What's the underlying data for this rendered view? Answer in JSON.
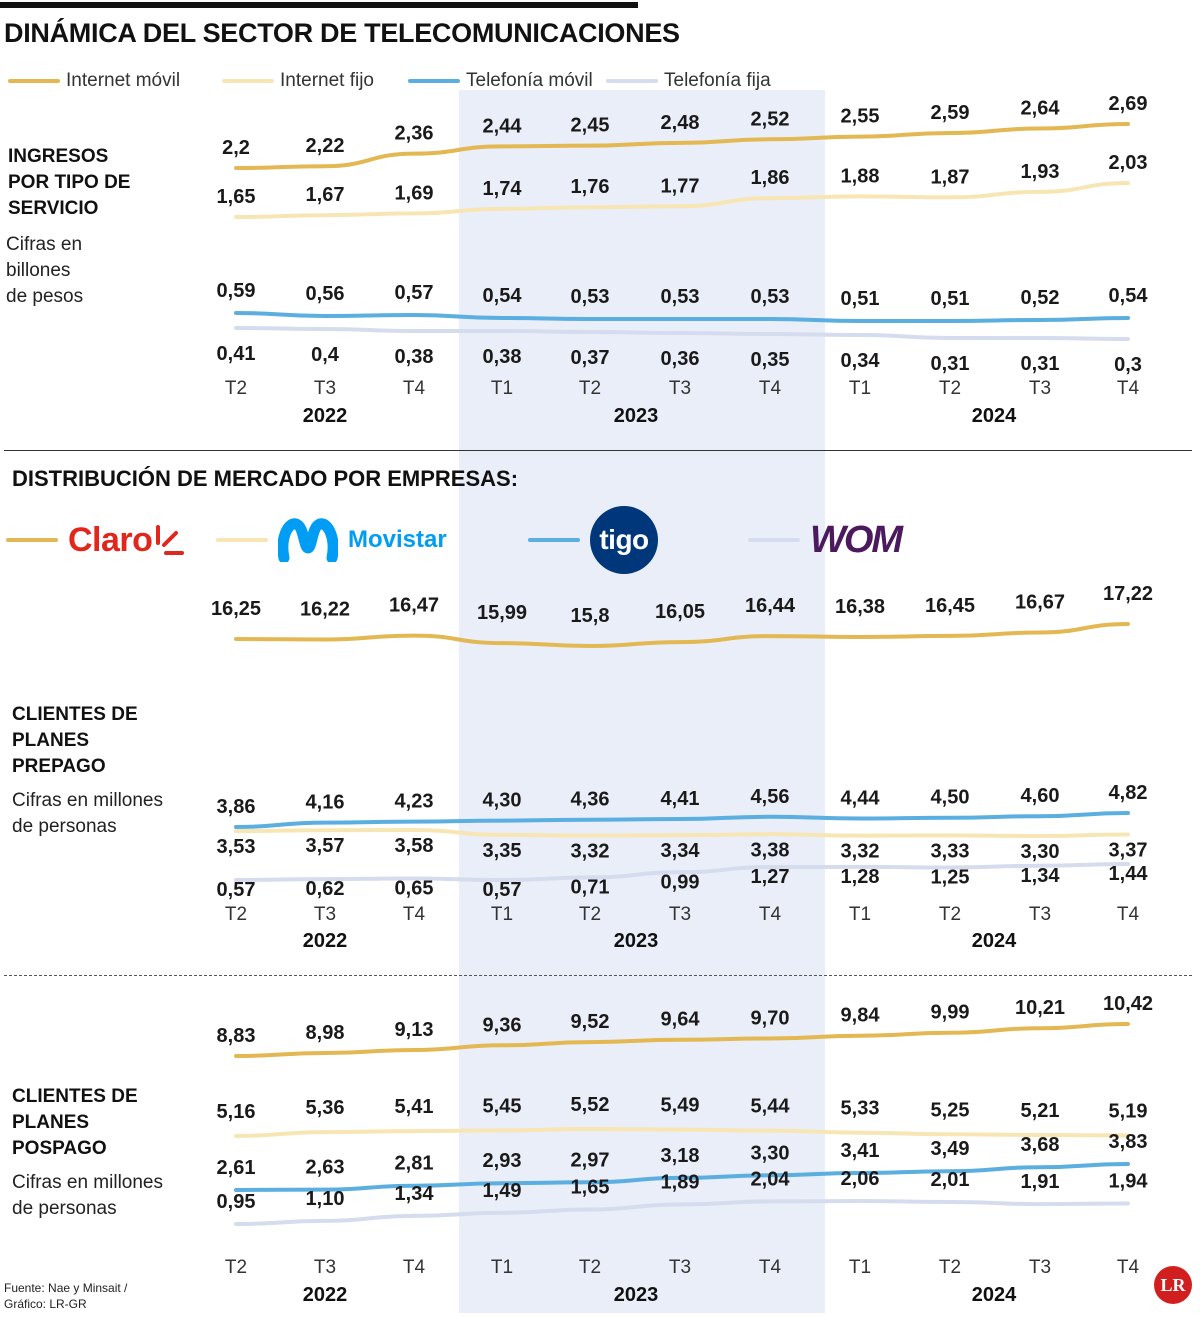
{
  "title": "DINÁMICA DEL SECTOR DE TELECOMUNICACIONES",
  "legend": [
    {
      "name": "Internet móvil",
      "color": "#e3b752"
    },
    {
      "name": "Internet fijo",
      "color": "#f7e6b3"
    },
    {
      "name": "Telefonía móvil",
      "color": "#5aaee0"
    },
    {
      "name": "Telefonía fija",
      "color": "#d5dcee"
    }
  ],
  "panel1": {
    "label_lines": [
      "INGRESOS",
      "POR TIPO DE",
      "SERVICIO"
    ],
    "note_lines": [
      "Cifras en",
      "billones",
      "de pesos"
    ]
  },
  "subtitle": "DISTRIBUCIÓN DE MERCADO POR EMPRESAS:",
  "brands": [
    {
      "name": "Claro",
      "color": "#e3b752",
      "icon": "claro-logo"
    },
    {
      "name": "Movistar",
      "color": "#f7e6b3",
      "icon": "movistar-logo"
    },
    {
      "name": "tigo",
      "color": "#5aaee0",
      "icon": "tigo-logo"
    },
    {
      "name": "WOM",
      "color": "#d5dcee",
      "icon": "wom-logo"
    }
  ],
  "panel2": {
    "label_lines": [
      "CLIENTES DE",
      "PLANES",
      "PREPAGO"
    ],
    "note_lines": [
      "Cifras en millones",
      "de personas"
    ]
  },
  "panel3": {
    "label_lines": [
      "CLIENTES DE",
      "PLANES",
      "POSPAGO"
    ],
    "note_lines": [
      "Cifras en millones",
      "de personas"
    ]
  },
  "footer": [
    "Fuente: Nae y Minsait /",
    "Gráfico: LR-GR"
  ],
  "lr_badge": "LR",
  "highlight_color": "#e9eef8",
  "chart_data": [
    {
      "type": "line",
      "title": "INGRESOS POR TIPO DE SERVICIO",
      "ylabel": "Cifras en billones de pesos",
      "categories": [
        "T2",
        "T3",
        "T4",
        "T1",
        "T2",
        "T3",
        "T4",
        "T1",
        "T2",
        "T3",
        "T4"
      ],
      "years": [
        {
          "label": "2022",
          "from": 0,
          "to": 2
        },
        {
          "label": "2023",
          "from": 3,
          "to": 6
        },
        {
          "label": "2024",
          "from": 7,
          "to": 10
        }
      ],
      "highlight": {
        "from": 3,
        "to": 6
      },
      "series": [
        {
          "name": "Internet móvil",
          "color": "#e3b752",
          "labels": [
            "2,2",
            "2,22",
            "2,36",
            "2,44",
            "2,45",
            "2,48",
            "2,52",
            "2,55",
            "2,59",
            "2,64",
            "2,69"
          ],
          "values": [
            2.2,
            2.22,
            2.36,
            2.44,
            2.45,
            2.48,
            2.52,
            2.55,
            2.59,
            2.64,
            2.69
          ]
        },
        {
          "name": "Internet fijo",
          "color": "#f7e6b3",
          "labels": [
            "1,65",
            "1,67",
            "1,69",
            "1,74",
            "1,76",
            "1,77",
            "1,86",
            "1,88",
            "1,87",
            "1,93",
            "2,03"
          ],
          "values": [
            1.65,
            1.67,
            1.69,
            1.74,
            1.76,
            1.77,
            1.86,
            1.88,
            1.87,
            1.93,
            2.03
          ]
        },
        {
          "name": "Telefonía móvil",
          "color": "#5aaee0",
          "labels": [
            "0,59",
            "0,56",
            "0,57",
            "0,54",
            "0,53",
            "0,53",
            "0,53",
            "0,51",
            "0,51",
            "0,52",
            "0,54"
          ],
          "values": [
            0.59,
            0.56,
            0.57,
            0.54,
            0.53,
            0.53,
            0.53,
            0.51,
            0.51,
            0.52,
            0.54
          ]
        },
        {
          "name": "Telefonía fija",
          "color": "#d5dcee",
          "labels": [
            "0,41",
            "0,4",
            "0,38",
            "0,38",
            "0,37",
            "0,36",
            "0,35",
            "0,34",
            "0,31",
            "0,31",
            "0,3"
          ],
          "values": [
            0.41,
            0.4,
            0.38,
            0.38,
            0.37,
            0.36,
            0.35,
            0.34,
            0.31,
            0.31,
            0.3
          ]
        }
      ]
    },
    {
      "type": "line",
      "title": "CLIENTES DE PLANES PREPAGO",
      "ylabel": "Cifras en millones de personas",
      "categories": [
        "T2",
        "T3",
        "T4",
        "T1",
        "T2",
        "T3",
        "T4",
        "T1",
        "T2",
        "T3",
        "T4"
      ],
      "years": [
        {
          "label": "2022",
          "from": 0,
          "to": 2
        },
        {
          "label": "2023",
          "from": 3,
          "to": 6
        },
        {
          "label": "2024",
          "from": 7,
          "to": 10
        }
      ],
      "highlight": {
        "from": 3,
        "to": 6
      },
      "series": [
        {
          "name": "Claro",
          "color": "#e3b752",
          "labels": [
            "16,25",
            "16,22",
            "16,47",
            "15,99",
            "15,8",
            "16,05",
            "16,44",
            "16,38",
            "16,45",
            "16,67",
            "17,22"
          ],
          "values": [
            16.25,
            16.22,
            16.47,
            15.99,
            15.8,
            16.05,
            16.44,
            16.38,
            16.45,
            16.67,
            17.22
          ]
        },
        {
          "name": "Tigo",
          "color": "#5aaee0",
          "labels": [
            "3,86",
            "4,16",
            "4,23",
            "4,30",
            "4,36",
            "4,41",
            "4,56",
            "4,44",
            "4,50",
            "4,60",
            "4,82"
          ],
          "values": [
            3.86,
            4.16,
            4.23,
            4.3,
            4.36,
            4.41,
            4.56,
            4.44,
            4.5,
            4.6,
            4.82
          ]
        },
        {
          "name": "Movistar",
          "color": "#f7e6b3",
          "labels": [
            "3,53",
            "3,57",
            "3,58",
            "3,35",
            "3,32",
            "3,34",
            "3,38",
            "3,32",
            "3,33",
            "3,30",
            "3,37"
          ],
          "values": [
            3.53,
            3.57,
            3.58,
            3.35,
            3.32,
            3.34,
            3.38,
            3.32,
            3.33,
            3.3,
            3.37
          ]
        },
        {
          "name": "WOM",
          "color": "#d5dcee",
          "labels": [
            "0,57",
            "0,62",
            "0,65",
            "0,57",
            "0,71",
            "0,99",
            "1,27",
            "1,28",
            "1,25",
            "1,34",
            "1,44"
          ],
          "values": [
            0.57,
            0.62,
            0.65,
            0.57,
            0.71,
            0.99,
            1.27,
            1.28,
            1.25,
            1.34,
            1.44
          ]
        }
      ]
    },
    {
      "type": "line",
      "title": "CLIENTES DE PLANES POSPAGO",
      "ylabel": "Cifras en millones de personas",
      "categories": [
        "T2",
        "T3",
        "T4",
        "T1",
        "T2",
        "T3",
        "T4",
        "T1",
        "T2",
        "T3",
        "T4"
      ],
      "years": [
        {
          "label": "2022",
          "from": 0,
          "to": 2
        },
        {
          "label": "2023",
          "from": 3,
          "to": 6
        },
        {
          "label": "2024",
          "from": 7,
          "to": 10
        }
      ],
      "highlight": {
        "from": 3,
        "to": 6
      },
      "series": [
        {
          "name": "Claro",
          "color": "#e3b752",
          "labels": [
            "8,83",
            "8,98",
            "9,13",
            "9,36",
            "9,52",
            "9,64",
            "9,70",
            "9,84",
            "9,99",
            "10,21",
            "10,42"
          ],
          "values": [
            8.83,
            8.98,
            9.13,
            9.36,
            9.52,
            9.64,
            9.7,
            9.84,
            9.99,
            10.21,
            10.42
          ]
        },
        {
          "name": "Movistar",
          "color": "#f7e6b3",
          "labels": [
            "5,16",
            "5,36",
            "5,41",
            "5,45",
            "5,52",
            "5,49",
            "5,44",
            "5,33",
            "5,25",
            "5,21",
            "5,19"
          ],
          "values": [
            5.16,
            5.36,
            5.41,
            5.45,
            5.52,
            5.49,
            5.44,
            5.33,
            5.25,
            5.21,
            5.19
          ]
        },
        {
          "name": "Tigo",
          "color": "#5aaee0",
          "labels": [
            "2,61",
            "2,63",
            "2,81",
            "2,93",
            "2,97",
            "3,18",
            "3,30",
            "3,41",
            "3,49",
            "3,68",
            "3,83"
          ],
          "values": [
            2.61,
            2.63,
            2.81,
            2.93,
            2.97,
            3.18,
            3.3,
            3.41,
            3.49,
            3.68,
            3.83
          ]
        },
        {
          "name": "WOM",
          "color": "#d5dcee",
          "labels": [
            "0,95",
            "1,10",
            "1,34",
            "1,49",
            "1,65",
            "1,89",
            "2,04",
            "2,06",
            "2,01",
            "1,91",
            "1,94"
          ],
          "values": [
            0.95,
            1.1,
            1.34,
            1.49,
            1.65,
            1.89,
            2.04,
            2.06,
            2.01,
            1.91,
            1.94
          ]
        }
      ]
    }
  ]
}
